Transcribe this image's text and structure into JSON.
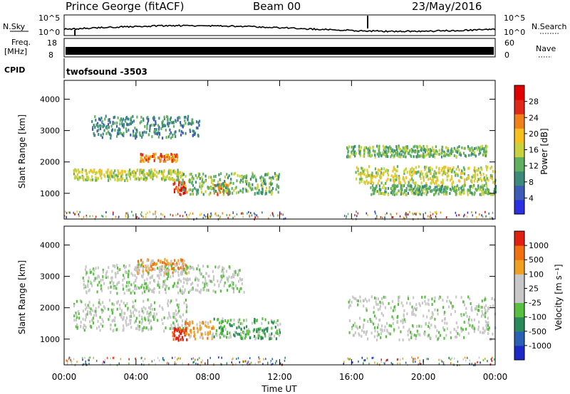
{
  "header": {
    "site": "Prince George (fitACF)",
    "beam": "Beam 00",
    "date": "23/May/2016"
  },
  "top_panels": {
    "nsky_label": "N.Sky",
    "nsky_tick_hi": "10^5",
    "nsky_tick_lo": "10^0",
    "nsearch_label": "N.Search",
    "nsearch_tick_hi": "10^5",
    "nsearch_tick_lo": "10^0",
    "freq_label_1": "Freq.",
    "freq_label_2": "[MHz]",
    "freq_tick_hi": "18",
    "freq_tick_lo": "8",
    "nave_label": "Nave",
    "nave_tick_hi": "60",
    "nave_tick_lo": "0",
    "cpid_label": "CPID",
    "cpid_value": "twofsound -3503"
  },
  "chart_data": [
    {
      "type": "heatmap",
      "name": "power",
      "ylabel": "Slant Range [km]",
      "ylim": [
        180,
        4600
      ],
      "yticks": [
        "1000",
        "2000",
        "3000",
        "4000"
      ],
      "colorbar_label": "Power [dB]",
      "colorbar_ticks": [
        "4",
        "8",
        "12",
        "16",
        "20",
        "24",
        "28"
      ],
      "colorbar_colors": [
        "#2b30e0",
        "#3c5cb8",
        "#3b8a7c",
        "#5fb060",
        "#c8d23c",
        "#f5c020",
        "#f08018",
        "#e02818",
        "#e00000"
      ],
      "scatter_bands": [
        {
          "t0": 0.5,
          "t1": 6.6,
          "r0": 1450,
          "r1": 1800,
          "color_idx": 4
        },
        {
          "t0": 4.2,
          "t1": 6.3,
          "r0": 2050,
          "r1": 2300,
          "color_idx": 6
        },
        {
          "t0": 6.0,
          "t1": 6.8,
          "r0": 1000,
          "r1": 1400,
          "color_idx": 7
        },
        {
          "t0": 8.3,
          "t1": 9.2,
          "r0": 1000,
          "r1": 1400,
          "color_idx": 6
        },
        {
          "t0": 6.5,
          "t1": 12.0,
          "r0": 1000,
          "r1": 1700,
          "color_idx": 3
        },
        {
          "t0": 16.2,
          "t1": 24.0,
          "r0": 1350,
          "r1": 1900,
          "color_idx": 4
        },
        {
          "t0": 17.0,
          "t1": 24.0,
          "r0": 1000,
          "r1": 1300,
          "color_idx": 3
        },
        {
          "t0": 15.7,
          "t1": 23.5,
          "r0": 2200,
          "r1": 2550,
          "color_idx": 3
        },
        {
          "t0": 1.5,
          "t1": 7.5,
          "r0": 2800,
          "r1": 3500,
          "color_idx": 2
        }
      ]
    },
    {
      "type": "heatmap",
      "name": "velocity",
      "ylabel": "Slant Range [km]",
      "ylim": [
        180,
        4600
      ],
      "yticks": [
        "1000",
        "2000",
        "3000",
        "4000"
      ],
      "xlabel": "Time UT",
      "xticks": [
        "00:00",
        "04:00",
        "08:00",
        "12:00",
        "16:00",
        "20:00",
        "00:00"
      ],
      "xlim": [
        0,
        24
      ],
      "colorbar_label": "Velocity [m s⁻¹]",
      "colorbar_ticks": [
        "1000",
        "500",
        "100",
        "25",
        "-25",
        "-100",
        "-500",
        "-1000"
      ],
      "colorbar_colors": [
        "#1e28c8",
        "#2860b4",
        "#2a8a5a",
        "#58c040",
        "#c8c8c8",
        "#c8c8c8",
        "#f0a020",
        "#f07010",
        "#e02010"
      ],
      "scatter_bands": [
        {
          "t0": 0.5,
          "t1": 6.8,
          "r0": 1300,
          "r1": 2300,
          "color_idx": 4
        },
        {
          "t0": 6.0,
          "t1": 6.8,
          "r0": 1000,
          "r1": 1400,
          "color_idx": 8
        },
        {
          "t0": 6.7,
          "t1": 8.3,
          "r0": 1050,
          "r1": 1600,
          "color_idx": 6
        },
        {
          "t0": 8.3,
          "t1": 12.0,
          "r0": 1050,
          "r1": 1700,
          "color_idx": 3
        },
        {
          "t0": 15.8,
          "t1": 24.0,
          "r0": 1000,
          "r1": 2400,
          "color_idx": 4
        },
        {
          "t0": 4.0,
          "t1": 6.8,
          "r0": 3100,
          "r1": 3600,
          "color_idx": 6
        },
        {
          "t0": 1.0,
          "t1": 10.0,
          "r0": 2500,
          "r1": 3400,
          "color_idx": 4
        }
      ]
    }
  ]
}
